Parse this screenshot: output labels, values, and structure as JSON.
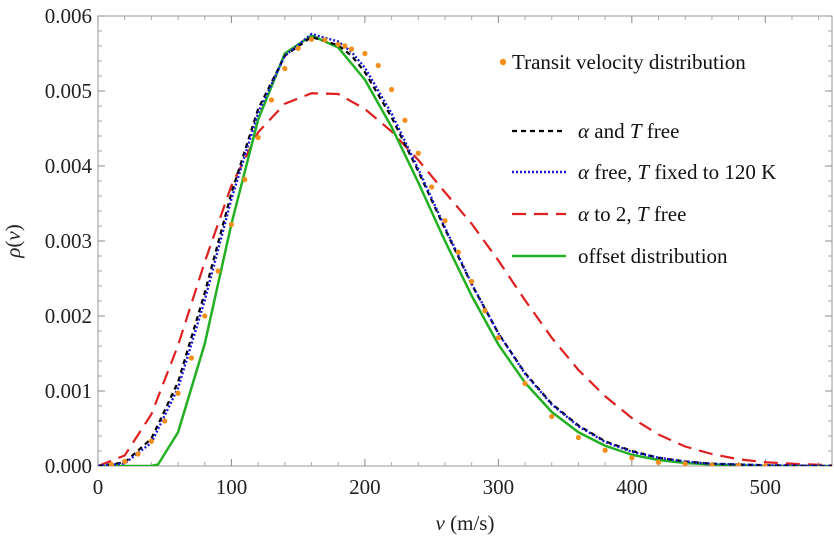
{
  "chart_data": {
    "type": "line",
    "xlabel": {
      "var": "v",
      "unit": " (m/s)"
    },
    "ylabel": {
      "var": "ρ",
      "paren_open": "(",
      "arg": "v",
      "paren_close": ")"
    },
    "xlim": [
      0,
      550
    ],
    "ylim": [
      0,
      0.006
    ],
    "x_ticks": [
      "0",
      "100",
      "200",
      "300",
      "400",
      "500"
    ],
    "x_tick_values": [
      0,
      100,
      200,
      300,
      400,
      500
    ],
    "y_ticks": [
      "0.000",
      "0.001",
      "0.002",
      "0.003",
      "0.004",
      "0.005",
      "0.006"
    ],
    "y_tick_values": [
      0,
      0.001,
      0.002,
      0.003,
      0.004,
      0.005,
      0.006
    ],
    "legend_position": "top-right",
    "grid": false,
    "series": [
      {
        "name": "Transit velocity distribution",
        "style": "points",
        "color": "#f28e1c",
        "x": [
          10,
          20,
          30,
          40,
          50,
          60,
          70,
          80,
          90,
          100,
          110,
          120,
          130,
          140,
          150,
          160,
          170,
          180,
          185,
          190,
          200,
          210,
          220,
          230,
          240,
          250,
          260,
          270,
          280,
          290,
          300,
          320,
          340,
          360,
          380,
          400,
          420,
          440,
          460,
          480,
          500
        ],
        "y": [
          2e-05,
          6e-05,
          0.00016,
          0.00033,
          0.0006,
          0.00097,
          0.00144,
          0.002,
          0.0026,
          0.00322,
          0.00382,
          0.00438,
          0.00488,
          0.0053,
          0.00557,
          0.00569,
          0.00568,
          0.00562,
          0.0056,
          0.00556,
          0.0055,
          0.00534,
          0.00502,
          0.00461,
          0.00417,
          0.00372,
          0.00327,
          0.00285,
          0.00246,
          0.00207,
          0.00171,
          0.0011,
          0.00066,
          0.00038,
          0.00021,
          0.00011,
          5e-05,
          3e-05,
          1e-05,
          1e-05,
          0.0
        ]
      },
      {
        "name": "α and T free",
        "label_parts": [
          [
            "α",
            true
          ],
          [
            " and ",
            false
          ],
          [
            "T",
            true
          ],
          [
            " free",
            false
          ]
        ],
        "style": "dashed",
        "color": "#000000",
        "x": [
          0,
          20,
          40,
          60,
          80,
          100,
          120,
          140,
          160,
          180,
          190,
          200,
          220,
          240,
          260,
          280,
          300,
          320,
          340,
          360,
          380,
          400,
          420,
          440,
          460,
          480,
          500,
          550
        ],
        "y": [
          0,
          4.79e-05,
          0.000365,
          0.00112,
          0.00231,
          0.00364,
          0.00476,
          0.00547,
          0.00572,
          0.00561,
          0.00547,
          0.00525,
          0.00465,
          0.00393,
          0.00316,
          0.00242,
          0.00177,
          0.00124,
          0.00083,
          0.00054,
          0.00033,
          0.0002,
          0.00011,
          6e-05,
          3e-05,
          2e-05,
          1e-05,
          0
        ]
      },
      {
        "name": "α free, T fixed to 120 K",
        "label_parts": [
          [
            "α",
            true
          ],
          [
            " free, ",
            false
          ],
          [
            "T",
            true
          ],
          [
            " fixed to 120 K",
            false
          ]
        ],
        "style": "dotted",
        "color": "#1a1ad4",
        "x": [
          0,
          20,
          40,
          60,
          80,
          100,
          120,
          140,
          160,
          180,
          190,
          200,
          220,
          240,
          260,
          280,
          300,
          320,
          340,
          360,
          380,
          400,
          420,
          440,
          460,
          480,
          500,
          550
        ],
        "y": [
          0,
          3.5e-05,
          0.00031,
          0.00104,
          0.00221,
          0.00356,
          0.00471,
          0.00547,
          0.00576,
          0.00566,
          0.00552,
          0.00531,
          0.0047,
          0.00396,
          0.00318,
          0.00243,
          0.00177,
          0.00123,
          0.00082,
          0.00053,
          0.00032,
          0.00019,
          0.00011,
          6e-05,
          3e-05,
          2e-05,
          1e-05,
          0
        ]
      },
      {
        "name": "α to 2, T free",
        "label_parts": [
          [
            "α",
            true
          ],
          [
            " to 2, ",
            false
          ],
          [
            "T",
            true
          ],
          [
            " free",
            false
          ]
        ],
        "style": "longdash",
        "color": "#e02020",
        "x": [
          0,
          20,
          40,
          60,
          80,
          100,
          120,
          140,
          160,
          180,
          200,
          220,
          240,
          260,
          280,
          300,
          320,
          340,
          360,
          380,
          400,
          420,
          440,
          460,
          480,
          500,
          520,
          550
        ],
        "y": [
          0,
          0.00014,
          0.00069,
          0.00161,
          0.00272,
          0.00374,
          0.00445,
          0.00483,
          0.00497,
          0.00496,
          0.00476,
          0.00446,
          0.00408,
          0.00365,
          0.00323,
          0.00274,
          0.00221,
          0.00171,
          0.00128,
          0.00093,
          0.00064,
          0.00042,
          0.00026,
          0.00016,
          9e-05,
          5e-05,
          3e-05,
          1e-05
        ]
      },
      {
        "name": "offset distribution",
        "label_parts": [
          [
            "offset distribution",
            false
          ]
        ],
        "style": "solid",
        "color": "#22b022",
        "x": [
          0,
          40,
          45,
          60,
          80,
          100,
          120,
          140,
          160,
          180,
          200,
          220,
          240,
          260,
          280,
          300,
          320,
          340,
          360,
          380,
          400,
          420,
          440,
          460,
          480,
          500,
          550
        ],
        "y": [
          0,
          0,
          2e-05,
          0.00045,
          0.00163,
          0.00323,
          0.00462,
          0.0055,
          0.00574,
          0.00558,
          0.00515,
          0.00452,
          0.00378,
          0.003,
          0.00227,
          0.00162,
          0.00111,
          0.00072,
          0.00045,
          0.00027,
          0.00015,
          8e-05,
          4e-05,
          2e-05,
          1e-05,
          0,
          0
        ]
      }
    ]
  }
}
